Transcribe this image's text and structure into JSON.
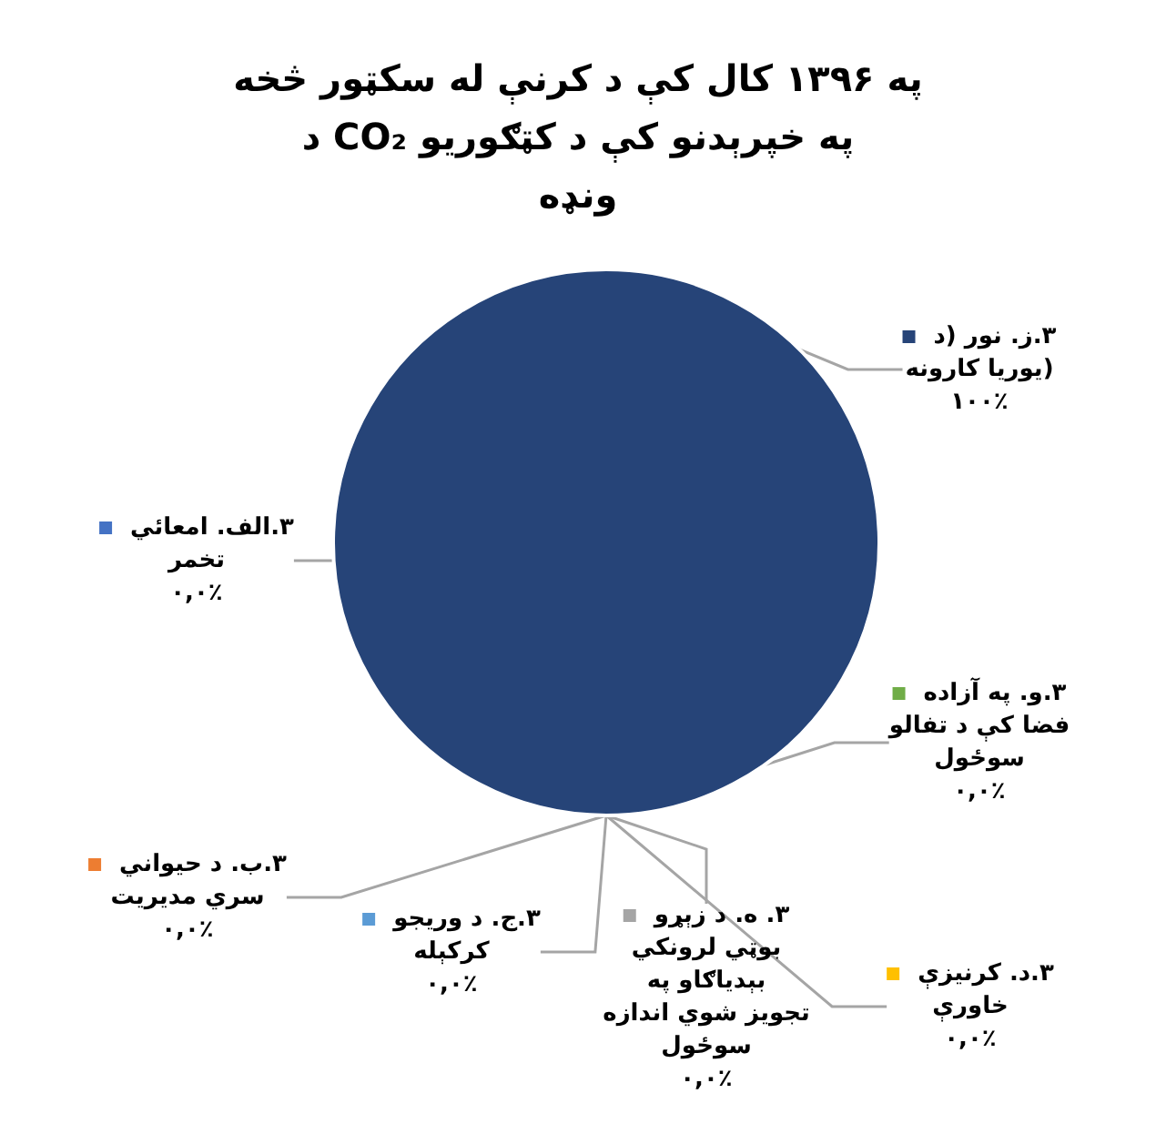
{
  "chart_data": {
    "type": "pie",
    "title": "په ۱۳۹۶ كال كې د كرنې له سكټور څخه د CO₂ په خپرېدنو کې د کټګوريو ونډه",
    "categories": [
      "٣.الف. امعائي تخمر",
      "٣.ب. د حيواني سري مديريت",
      "٣.ج. د وريجو كركېله",
      "٣.د. كرنيزې خاورې",
      "٣. ه. د زېړو بوټي لرونکي بېدياګاو په تجويز شوي اندازه سوځول",
      "٣.و. په آزاده فضا كې د تفالو سوځول",
      "٣.ز. نور (د يوريا كارونه)"
    ],
    "values": [
      0,
      0,
      0,
      0,
      0,
      0,
      100
    ],
    "colors": [
      "#4472c4",
      "#ed7d31",
      "#5b9bd5",
      "#ffc000",
      "#a5a5a5",
      "#70ad47",
      "#264478"
    ],
    "value_labels": [
      "۰,۰٪",
      "۰,۰٪",
      "۰,۰٪",
      "۰,۰٪",
      "۰,۰٪",
      "۰,۰٪",
      "۱۰۰٪"
    ],
    "legend": true
  }
}
